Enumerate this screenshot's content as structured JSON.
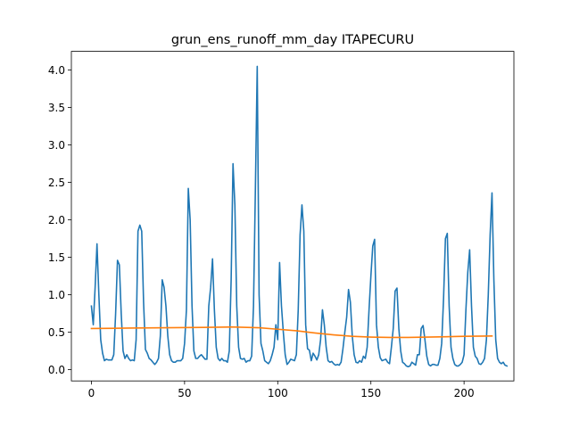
{
  "chart_data": {
    "type": "line",
    "title": "grun_ens_runoff_mm_day ITAPECURU",
    "xlabel": "",
    "ylabel": "",
    "xlim": [
      -10.75,
      226.75
    ],
    "ylim": [
      -0.15,
      4.25
    ],
    "x_ticks": [
      0,
      50,
      100,
      150,
      200
    ],
    "y_ticks": [
      0.0,
      0.5,
      1.0,
      1.5,
      2.0,
      2.5,
      3.0,
      3.5,
      4.0
    ],
    "x_tick_labels": [
      "0",
      "50",
      "100",
      "150",
      "200"
    ],
    "y_tick_labels": [
      "0.0",
      "0.5",
      "1.0",
      "1.5",
      "2.0",
      "2.5",
      "3.0",
      "3.5",
      "4.0"
    ],
    "grid": false,
    "legend": "none",
    "series": [
      {
        "color": "#1f77b4",
        "values": [
          0.85,
          0.6,
          1.1,
          1.68,
          1.0,
          0.4,
          0.22,
          0.12,
          0.14,
          0.13,
          0.13,
          0.13,
          0.2,
          0.75,
          1.46,
          1.4,
          0.75,
          0.25,
          0.15,
          0.2,
          0.15,
          0.12,
          0.13,
          0.12,
          0.4,
          1.85,
          1.93,
          1.85,
          0.9,
          0.27,
          0.22,
          0.15,
          0.13,
          0.1,
          0.07,
          0.1,
          0.15,
          0.45,
          1.2,
          1.1,
          0.85,
          0.45,
          0.2,
          0.12,
          0.1,
          0.1,
          0.12,
          0.12,
          0.12,
          0.15,
          0.35,
          0.8,
          2.42,
          2.0,
          0.85,
          0.25,
          0.15,
          0.15,
          0.18,
          0.2,
          0.17,
          0.14,
          0.14,
          0.85,
          1.1,
          1.48,
          0.8,
          0.3,
          0.15,
          0.12,
          0.15,
          0.12,
          0.12,
          0.1,
          0.25,
          1.2,
          2.75,
          2.2,
          0.85,
          0.3,
          0.15,
          0.14,
          0.15,
          0.1,
          0.12,
          0.12,
          0.18,
          0.85,
          2.4,
          4.05,
          1.0,
          0.35,
          0.25,
          0.12,
          0.1,
          0.08,
          0.12,
          0.2,
          0.3,
          0.6,
          0.4,
          1.43,
          0.85,
          0.5,
          0.2,
          0.07,
          0.1,
          0.14,
          0.13,
          0.12,
          0.2,
          0.8,
          1.8,
          2.2,
          1.85,
          0.6,
          0.28,
          0.26,
          0.12,
          0.22,
          0.18,
          0.13,
          0.2,
          0.4,
          0.8,
          0.6,
          0.3,
          0.12,
          0.1,
          0.11,
          0.08,
          0.06,
          0.07,
          0.06,
          0.1,
          0.28,
          0.5,
          0.7,
          1.07,
          0.9,
          0.45,
          0.2,
          0.1,
          0.09,
          0.12,
          0.1,
          0.18,
          0.15,
          0.3,
          0.8,
          1.25,
          1.65,
          1.74,
          0.6,
          0.3,
          0.16,
          0.12,
          0.13,
          0.14,
          0.1,
          0.08,
          0.3,
          0.55,
          1.05,
          1.09,
          0.55,
          0.25,
          0.1,
          0.08,
          0.05,
          0.04,
          0.05,
          0.1,
          0.08,
          0.06,
          0.2,
          0.2,
          0.55,
          0.59,
          0.4,
          0.18,
          0.07,
          0.05,
          0.07,
          0.07,
          0.06,
          0.06,
          0.15,
          0.35,
          0.95,
          1.75,
          1.82,
          0.85,
          0.3,
          0.15,
          0.07,
          0.05,
          0.05,
          0.07,
          0.1,
          0.2,
          0.8,
          1.3,
          1.6,
          0.85,
          0.3,
          0.18,
          0.15,
          0.08,
          0.07,
          0.1,
          0.15,
          0.4,
          1.0,
          1.8,
          2.36,
          1.2,
          0.4,
          0.15,
          0.1,
          0.08,
          0.1,
          0.06,
          0.05
        ]
      },
      {
        "color": "#ff7f0e",
        "points": [
          [
            0,
            0.55
          ],
          [
            20,
            0.555
          ],
          [
            40,
            0.56
          ],
          [
            60,
            0.565
          ],
          [
            75,
            0.57
          ],
          [
            90,
            0.56
          ],
          [
            100,
            0.54
          ],
          [
            110,
            0.52
          ],
          [
            120,
            0.49
          ],
          [
            130,
            0.465
          ],
          [
            140,
            0.445
          ],
          [
            150,
            0.435
          ],
          [
            160,
            0.43
          ],
          [
            170,
            0.43
          ],
          [
            180,
            0.435
          ],
          [
            190,
            0.44
          ],
          [
            200,
            0.445
          ],
          [
            215,
            0.45
          ]
        ]
      }
    ]
  }
}
